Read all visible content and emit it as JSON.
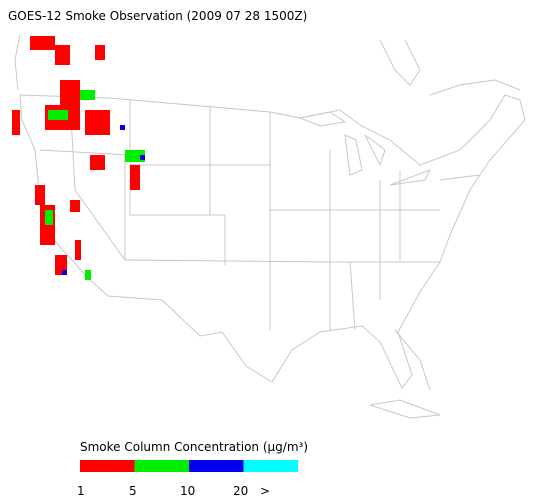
{
  "title": "GOES-12 Smoke Observation (2009 07 28  1500Z)",
  "legend": {
    "title": "Smoke Column Concentration (μg/m³)",
    "colors": [
      "#ff0000",
      "#00ee00",
      "#0000ee",
      "#00ffff"
    ],
    "labels": [
      "1",
      "5",
      "10",
      "20",
      ">"
    ]
  }
}
